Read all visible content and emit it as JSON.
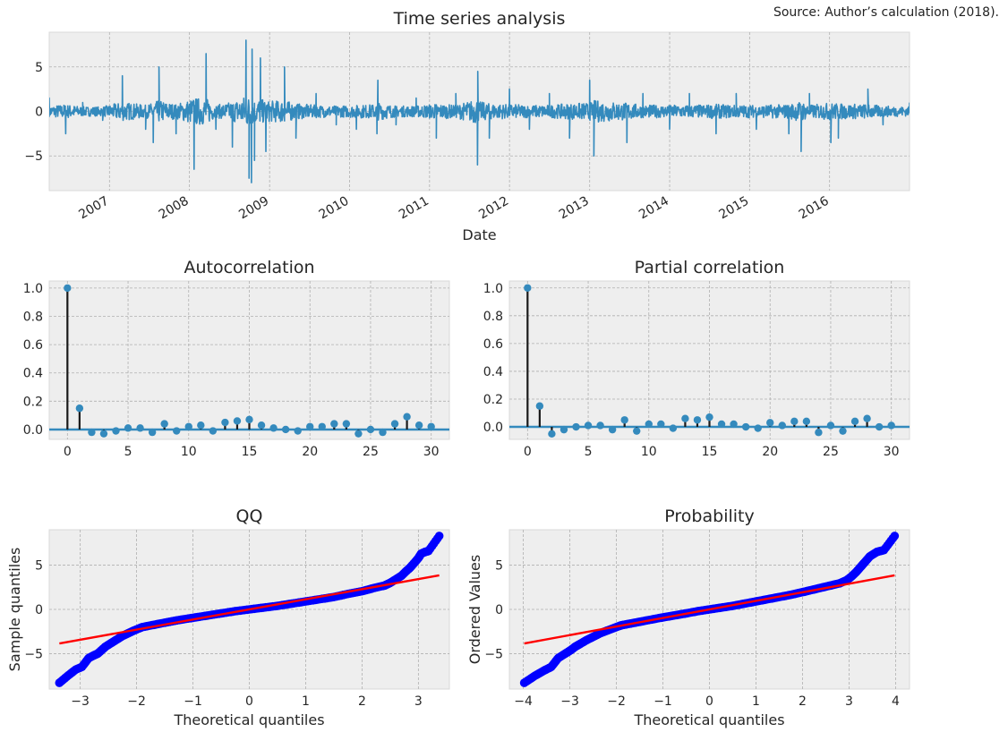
{
  "source_note": "Source: Author’s calculation (2018).",
  "colors": {
    "panel_bg": "#eeeeee",
    "grid": "#b0b0b0",
    "series": "#348abd",
    "stem": "#1a1a1a",
    "qq_points": "#0000ff",
    "qq_line": "#ff0000"
  },
  "chart_data": [
    {
      "id": "ts",
      "type": "line",
      "title": "Time series analysis",
      "xlabel": "Date",
      "ylabel": "",
      "x_tick_labels": [
        "2007",
        "2008",
        "2009",
        "2010",
        "2011",
        "2012",
        "2013",
        "2014",
        "2015",
        "2016"
      ],
      "xlim": [
        "2006-04-01",
        "2016-12-31"
      ],
      "ylim": [
        -8.9,
        8.9
      ],
      "y_ticks": [
        -5,
        0,
        5
      ],
      "y_tick_labels": [
        "−5",
        "0",
        "5"
      ],
      "grid": true,
      "series": [
        {
          "x": [
            "2006-04-01",
            "2006-06-15",
            "2006-09-01",
            "2006-12-01",
            "2007-03-01",
            "2007-06-15",
            "2007-07-20",
            "2007-08-15",
            "2007-11-01",
            "2008-01-22",
            "2008-03-17",
            "2008-05-01",
            "2008-07-15",
            "2008-09-15",
            "2008-09-29",
            "2008-10-10",
            "2008-10-13",
            "2008-10-24",
            "2008-11-20",
            "2008-12-15",
            "2009-03-10",
            "2009-05-01",
            "2009-08-01",
            "2009-11-01",
            "2010-02-01",
            "2010-05-06",
            "2010-05-10",
            "2010-08-01",
            "2010-11-01",
            "2011-02-01",
            "2011-05-01",
            "2011-08-08",
            "2011-08-09",
            "2011-10-01",
            "2012-01-01",
            "2012-04-01",
            "2012-07-01",
            "2012-10-01",
            "2013-01-01",
            "2013-01-20",
            "2013-06-20",
            "2013-09-01",
            "2014-01-01",
            "2014-04-01",
            "2014-08-01",
            "2014-11-01",
            "2015-02-01",
            "2015-06-29",
            "2015-08-24",
            "2015-10-01",
            "2016-01-07",
            "2016-02-10",
            "2016-06-24",
            "2016-09-01",
            "2016-12-31"
          ],
          "y": [
            1.5,
            -2.5,
            1.0,
            -1.0,
            4.0,
            -2.0,
            -3.5,
            5.0,
            -2.5,
            -6.5,
            6.5,
            -2.0,
            -4.0,
            8.0,
            -7.5,
            -8.0,
            7.0,
            -5.5,
            6.0,
            -4.5,
            5.0,
            -3.0,
            2.0,
            -1.5,
            -2.0,
            -2.5,
            3.5,
            -1.5,
            1.5,
            -3.0,
            2.0,
            -6.0,
            4.5,
            -3.0,
            2.5,
            -2.0,
            2.0,
            -3.0,
            3.5,
            -5.0,
            -3.5,
            2.0,
            -2.0,
            2.0,
            -2.5,
            2.0,
            -2.0,
            -2.5,
            -4.5,
            2.0,
            -3.5,
            -3.0,
            2.5,
            -1.5,
            1.0
          ],
          "color": "#348abd"
        }
      ]
    },
    {
      "id": "acf",
      "type": "stem",
      "title": "Autocorrelation",
      "xlabel": "",
      "ylabel": "",
      "xlim": [
        -1.5,
        31.5
      ],
      "ylim": [
        -0.07,
        1.05
      ],
      "x_ticks": [
        0,
        5,
        10,
        15,
        20,
        25,
        30
      ],
      "x_tick_labels": [
        "0",
        "5",
        "10",
        "15",
        "20",
        "25",
        "30"
      ],
      "y_ticks": [
        0.0,
        0.2,
        0.4,
        0.6,
        0.8,
        1.0
      ],
      "y_tick_labels": [
        "0.0",
        "0.2",
        "0.4",
        "0.6",
        "0.8",
        "1.0"
      ],
      "grid": true,
      "lags": [
        0,
        1,
        2,
        3,
        4,
        5,
        6,
        7,
        8,
        9,
        10,
        11,
        12,
        13,
        14,
        15,
        16,
        17,
        18,
        19,
        20,
        21,
        22,
        23,
        24,
        25,
        26,
        27,
        28,
        29,
        30
      ],
      "values": [
        1.0,
        0.15,
        -0.02,
        -0.03,
        -0.01,
        0.01,
        0.01,
        -0.02,
        0.04,
        -0.01,
        0.02,
        0.03,
        -0.01,
        0.05,
        0.06,
        0.07,
        0.03,
        0.01,
        0.0,
        -0.01,
        0.02,
        0.02,
        0.04,
        0.04,
        -0.03,
        0.0,
        -0.02,
        0.04,
        0.09,
        0.03,
        0.02
      ]
    },
    {
      "id": "pacf",
      "type": "stem",
      "title": "Partial correlation",
      "xlabel": "",
      "ylabel": "",
      "xlim": [
        -1.5,
        31.5
      ],
      "ylim": [
        -0.09,
        1.05
      ],
      "x_ticks": [
        0,
        5,
        10,
        15,
        20,
        25,
        30
      ],
      "x_tick_labels": [
        "0",
        "5",
        "10",
        "15",
        "20",
        "25",
        "30"
      ],
      "y_ticks": [
        0.0,
        0.2,
        0.4,
        0.6,
        0.8,
        1.0
      ],
      "y_tick_labels": [
        "0.0",
        "0.2",
        "0.4",
        "0.6",
        "0.8",
        "1.0"
      ],
      "grid": true,
      "lags": [
        0,
        1,
        2,
        3,
        4,
        5,
        6,
        7,
        8,
        9,
        10,
        11,
        12,
        13,
        14,
        15,
        16,
        17,
        18,
        19,
        20,
        21,
        22,
        23,
        24,
        25,
        26,
        27,
        28,
        29,
        30
      ],
      "values": [
        1.0,
        0.15,
        -0.05,
        -0.02,
        0.0,
        0.01,
        0.01,
        -0.02,
        0.05,
        -0.03,
        0.02,
        0.02,
        -0.01,
        0.06,
        0.05,
        0.07,
        0.02,
        0.02,
        0.0,
        -0.01,
        0.03,
        0.01,
        0.04,
        0.04,
        -0.04,
        0.01,
        -0.03,
        0.04,
        0.06,
        0.0,
        0.01
      ]
    },
    {
      "id": "qq",
      "type": "scatter",
      "title": "QQ",
      "xlabel": "Theoretical quantiles",
      "ylabel": "Sample quantiles",
      "xlim": [
        -3.55,
        3.55
      ],
      "ylim": [
        -9.0,
        9.0
      ],
      "x_ticks": [
        -3,
        -2,
        -1,
        0,
        1,
        2,
        3
      ],
      "x_tick_labels": [
        "−3",
        "−2",
        "−1",
        "0",
        "1",
        "2",
        "3"
      ],
      "y_ticks": [
        -5,
        0,
        5
      ],
      "y_tick_labels": [
        "−5",
        "0",
        "5"
      ],
      "grid": true,
      "points": {
        "x": [
          -3.37,
          -3.22,
          -3.08,
          -2.97,
          -2.85,
          -2.76,
          -2.69,
          -2.62,
          -2.55,
          -2.45,
          -2.35,
          -2.25,
          -2.15,
          -2.05,
          -1.9,
          -1.7,
          -1.5,
          -1.25,
          -1.0,
          -0.75,
          -0.5,
          -0.25,
          0.0,
          0.25,
          0.5,
          0.75,
          1.0,
          1.25,
          1.5,
          1.75,
          2.0,
          2.2,
          2.4,
          2.5,
          2.6,
          2.7,
          2.78,
          2.85,
          2.92,
          3.0,
          3.05,
          3.12,
          3.18,
          3.37
        ],
        "y": [
          -8.3,
          -7.5,
          -6.8,
          -6.5,
          -5.5,
          -5.2,
          -5.0,
          -4.6,
          -4.2,
          -3.8,
          -3.4,
          -3.0,
          -2.7,
          -2.4,
          -2.0,
          -1.75,
          -1.5,
          -1.2,
          -0.95,
          -0.7,
          -0.45,
          -0.2,
          0.0,
          0.2,
          0.4,
          0.65,
          0.9,
          1.15,
          1.4,
          1.75,
          2.05,
          2.4,
          2.7,
          3.0,
          3.4,
          3.8,
          4.3,
          4.7,
          5.2,
          5.8,
          6.3,
          6.5,
          6.6,
          8.3
        ]
      },
      "line": {
        "x": [
          -3.37,
          3.37
        ],
        "y": [
          -3.85,
          3.85
        ]
      }
    },
    {
      "id": "prob",
      "type": "scatter",
      "title": "Probability",
      "xlabel": "Theoretical quantiles",
      "ylabel": "Ordered Values",
      "xlim": [
        -4.3,
        4.3
      ],
      "ylim": [
        -9.0,
        9.0
      ],
      "x_ticks": [
        -4,
        -3,
        -2,
        -1,
        0,
        1,
        2,
        3,
        4
      ],
      "x_tick_labels": [
        "−4",
        "−3",
        "−2",
        "−1",
        "0",
        "1",
        "2",
        "3",
        "4"
      ],
      "y_ticks": [
        -5,
        0,
        5
      ],
      "y_tick_labels": [
        "−5",
        "0",
        "5"
      ],
      "grid": true,
      "points": {
        "x": [
          -3.98,
          -3.75,
          -3.55,
          -3.4,
          -3.25,
          -3.1,
          -2.98,
          -2.88,
          -2.78,
          -2.65,
          -2.5,
          -2.35,
          -2.2,
          -2.05,
          -1.9,
          -1.7,
          -1.5,
          -1.25,
          -1.0,
          -0.75,
          -0.5,
          -0.25,
          0.0,
          0.25,
          0.5,
          0.75,
          1.0,
          1.25,
          1.5,
          1.75,
          2.0,
          2.2,
          2.4,
          2.6,
          2.8,
          2.95,
          3.05,
          3.15,
          3.25,
          3.35,
          3.45,
          3.6,
          3.75,
          3.98
        ],
        "y": [
          -8.3,
          -7.5,
          -6.9,
          -6.5,
          -5.5,
          -5.0,
          -4.6,
          -4.2,
          -3.9,
          -3.5,
          -3.1,
          -2.7,
          -2.4,
          -2.1,
          -1.8,
          -1.6,
          -1.4,
          -1.15,
          -0.9,
          -0.68,
          -0.45,
          -0.2,
          0.0,
          0.2,
          0.4,
          0.65,
          0.9,
          1.15,
          1.4,
          1.65,
          1.95,
          2.2,
          2.45,
          2.7,
          2.95,
          3.3,
          3.7,
          4.2,
          4.8,
          5.4,
          6.0,
          6.5,
          6.7,
          8.3
        ]
      },
      "line": {
        "x": [
          -3.98,
          3.98
        ],
        "y": [
          -3.85,
          3.85
        ]
      }
    }
  ]
}
